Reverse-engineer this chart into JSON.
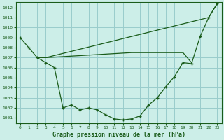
{
  "background_color": "#cceee8",
  "grid_color": "#99cccc",
  "line_color": "#1a5c1a",
  "title": "Graphe pression niveau de la mer (hPa)",
  "xlim": [
    -0.5,
    23.5
  ],
  "ylim": [
    1000.5,
    1012.5
  ],
  "yticks": [
    1001,
    1002,
    1003,
    1004,
    1005,
    1006,
    1007,
    1008,
    1009,
    1010,
    1011,
    1012
  ],
  "xticks": [
    0,
    1,
    2,
    3,
    4,
    5,
    6,
    7,
    8,
    9,
    10,
    11,
    12,
    13,
    14,
    15,
    16,
    17,
    18,
    19,
    20,
    21,
    22,
    23
  ],
  "series1_x": [
    0,
    1,
    2,
    3,
    4,
    5,
    6,
    7,
    8,
    9,
    10,
    11,
    12,
    13,
    14,
    15,
    16,
    17,
    18,
    19,
    20,
    21,
    22,
    23
  ],
  "series1_y": [
    1009.0,
    1008.0,
    1007.0,
    1006.5,
    1006.0,
    1002.0,
    1002.3,
    1001.8,
    1002.0,
    1001.8,
    1001.3,
    1000.9,
    1000.8,
    1000.9,
    1001.2,
    1002.3,
    1003.0,
    1004.1,
    1005.1,
    1006.5,
    1006.4,
    1009.1,
    1011.0,
    1012.4
  ],
  "series2_x": [
    2,
    3,
    4,
    5,
    6,
    7,
    8,
    9,
    10,
    11,
    12,
    13,
    14,
    15,
    16,
    17,
    18,
    19,
    20
  ],
  "series2_y": [
    1007.0,
    1007.0,
    1007.05,
    1007.1,
    1007.15,
    1007.2,
    1007.25,
    1007.3,
    1007.35,
    1007.4,
    1007.45,
    1007.5,
    1007.5,
    1007.5,
    1007.5,
    1007.5,
    1007.5,
    1007.5,
    1006.5
  ],
  "series3_x": [
    2,
    3,
    22,
    23
  ],
  "series3_y": [
    1007.0,
    1007.0,
    1011.0,
    1012.4
  ]
}
